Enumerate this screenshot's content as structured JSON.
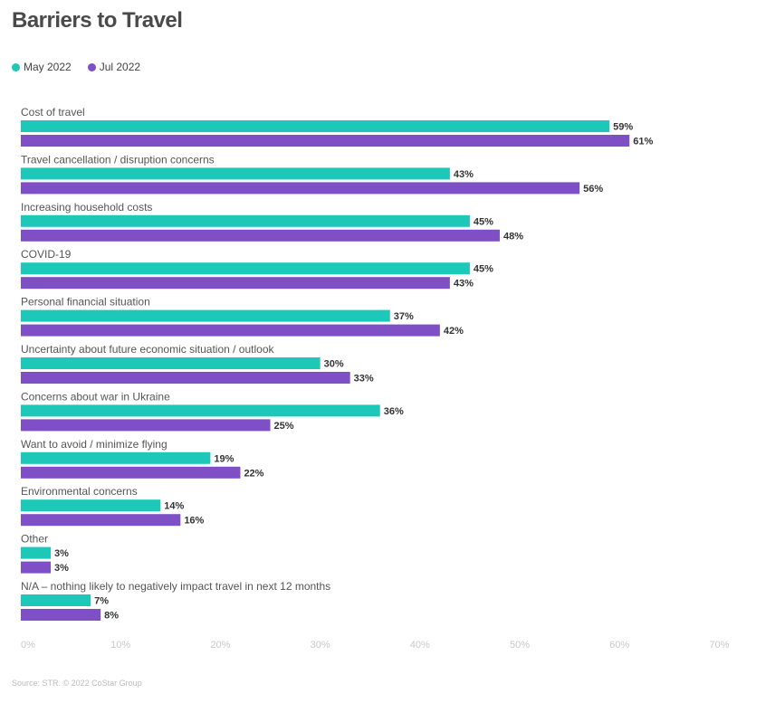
{
  "title": "Barriers to Travel",
  "source": "Source: STR. © 2022 CoStar Group",
  "chart_data": {
    "type": "bar",
    "orientation": "horizontal",
    "title": "Barriers to Travel",
    "xlim": [
      0,
      70
    ],
    "x_ticks": [
      "0%",
      "10%",
      "20%",
      "30%",
      "40%",
      "50%",
      "60%",
      "70%"
    ],
    "grid": false,
    "legend_position": "top-left",
    "categories": [
      "Cost of travel",
      "Travel cancellation / disruption concerns",
      "Increasing household costs",
      "COVID-19",
      "Personal financial situation",
      "Uncertainty about future economic situation / outlook",
      "Concerns about war in Ukraine",
      "Want to avoid / minimize flying",
      "Environmental concerns",
      "Other",
      "N/A – nothing likely to negatively impact travel in next 12 months"
    ],
    "series": [
      {
        "name": "May 2022",
        "color": "#1ec8b8",
        "values": [
          59,
          43,
          45,
          45,
          37,
          30,
          36,
          19,
          14,
          3,
          7
        ]
      },
      {
        "name": "Jul 2022",
        "color": "#7f4fc6",
        "values": [
          61,
          56,
          48,
          43,
          42,
          33,
          25,
          22,
          16,
          3,
          8
        ]
      }
    ]
  }
}
